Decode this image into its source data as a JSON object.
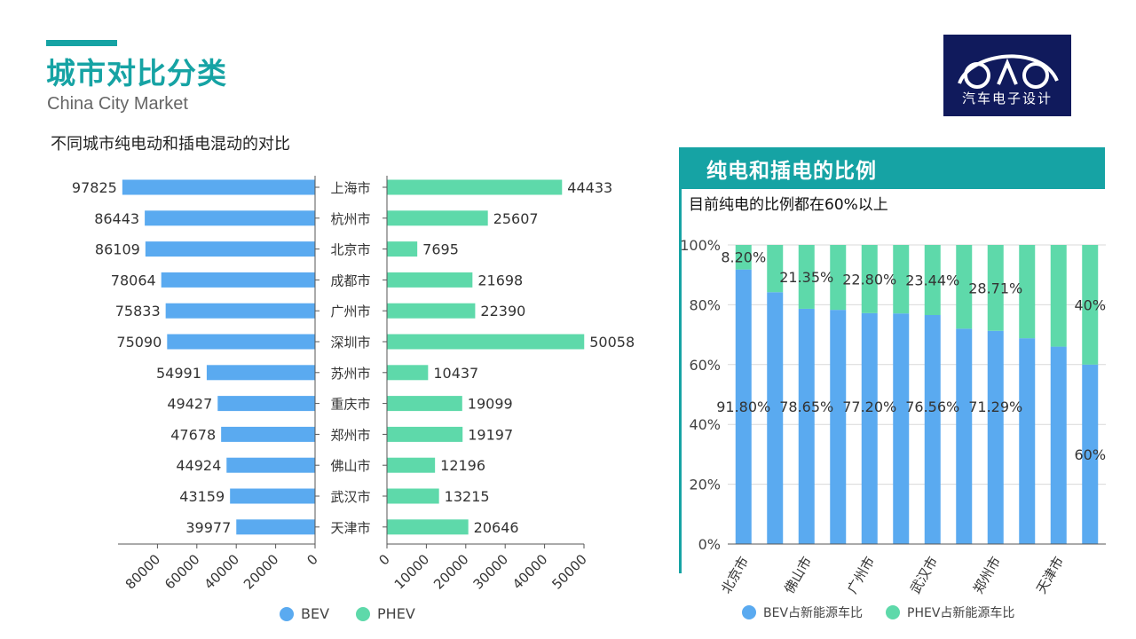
{
  "header": {
    "title": "城市对比分类",
    "subtitle": "China City Market",
    "left_heading": "不同城市纯电动和插电混动的对比"
  },
  "logo": {
    "text": "汽车电子设计",
    "icon": "car-outline-logo-icon"
  },
  "colors": {
    "accent": "#16a3a4",
    "bev": "#5aaaf0",
    "phev": "#5ed9aa",
    "logo_bg": "#101a5c",
    "header_bg": "#16a3a4"
  },
  "right_panel": {
    "title": "纯电和插电的比例",
    "subtitle": "目前纯电的比例都在60%以上"
  },
  "chart_data": [
    {
      "type": "bar",
      "orientation": "horizontal-butterfly",
      "title": "不同城市纯电动和插电混动的对比",
      "categories": [
        "上海市",
        "杭州市",
        "北京市",
        "成都市",
        "广州市",
        "深圳市",
        "苏州市",
        "重庆市",
        "郑州市",
        "佛山市",
        "武汉市",
        "天津市"
      ],
      "series": [
        {
          "name": "BEV",
          "values": [
            97825,
            86443,
            86109,
            78064,
            75833,
            75090,
            54991,
            49427,
            47678,
            44924,
            43159,
            39977
          ],
          "xlim": [
            0,
            100000
          ],
          "ticks": [
            "80000",
            "60000",
            "40000",
            "20000",
            "0"
          ],
          "tick_values": [
            80000,
            60000,
            40000,
            20000,
            0
          ]
        },
        {
          "name": "PHEV",
          "values": [
            44433,
            25607,
            7695,
            21698,
            22390,
            50058,
            10437,
            19099,
            19197,
            12196,
            13215,
            20646
          ],
          "xlim": [
            0,
            50000
          ],
          "ticks": [
            "0",
            "10000",
            "20000",
            "30000",
            "40000",
            "50000"
          ],
          "tick_values": [
            0,
            10000,
            20000,
            30000,
            40000,
            50000
          ]
        }
      ],
      "legend": [
        "BEV",
        "PHEV"
      ],
      "legend_position": "bottom"
    },
    {
      "type": "bar",
      "stacked": true,
      "percent": true,
      "title": "纯电和插电的比例",
      "subtitle": "目前纯电的比例都在60%以上",
      "categories": [
        "北京市",
        "",
        "佛山市",
        "",
        "广州市",
        "",
        "武汉市",
        "",
        "郑州市",
        "",
        "天津市",
        ""
      ],
      "series": [
        {
          "name": "BEV占新能源车比",
          "values": [
            91.8,
            84.2,
            78.65,
            78.3,
            77.2,
            77.1,
            76.56,
            72.0,
            71.29,
            68.8,
            66.0,
            60.0
          ]
        },
        {
          "name": "PHEV占新能源车比",
          "values": [
            8.2,
            15.8,
            21.35,
            21.7,
            22.8,
            22.9,
            23.44,
            28.0,
            28.71,
            31.2,
            34.0,
            40.0
          ]
        }
      ],
      "data_labels": [
        {
          "index": 0,
          "series": 1,
          "text": "8.20%"
        },
        {
          "index": 2,
          "series": 1,
          "text": "21.35%"
        },
        {
          "index": 4,
          "series": 1,
          "text": "22.80%"
        },
        {
          "index": 6,
          "series": 1,
          "text": "23.44%"
        },
        {
          "index": 8,
          "series": 1,
          "text": "28.71%"
        },
        {
          "index": 11,
          "series": 1,
          "text": "40%"
        },
        {
          "index": 0,
          "series": 0,
          "text": "91.80%"
        },
        {
          "index": 2,
          "series": 0,
          "text": "78.65%"
        },
        {
          "index": 4,
          "series": 0,
          "text": "77.20%"
        },
        {
          "index": 6,
          "series": 0,
          "text": "76.56%"
        },
        {
          "index": 8,
          "series": 0,
          "text": "71.29%"
        },
        {
          "index": 11,
          "series": 0,
          "text": "60%"
        }
      ],
      "ylim": [
        0,
        100
      ],
      "yticks": [
        "0%",
        "20%",
        "40%",
        "60%",
        "80%",
        "100%"
      ],
      "ytick_values": [
        0,
        20,
        40,
        60,
        80,
        100
      ],
      "grid": true,
      "legend_position": "bottom"
    }
  ]
}
